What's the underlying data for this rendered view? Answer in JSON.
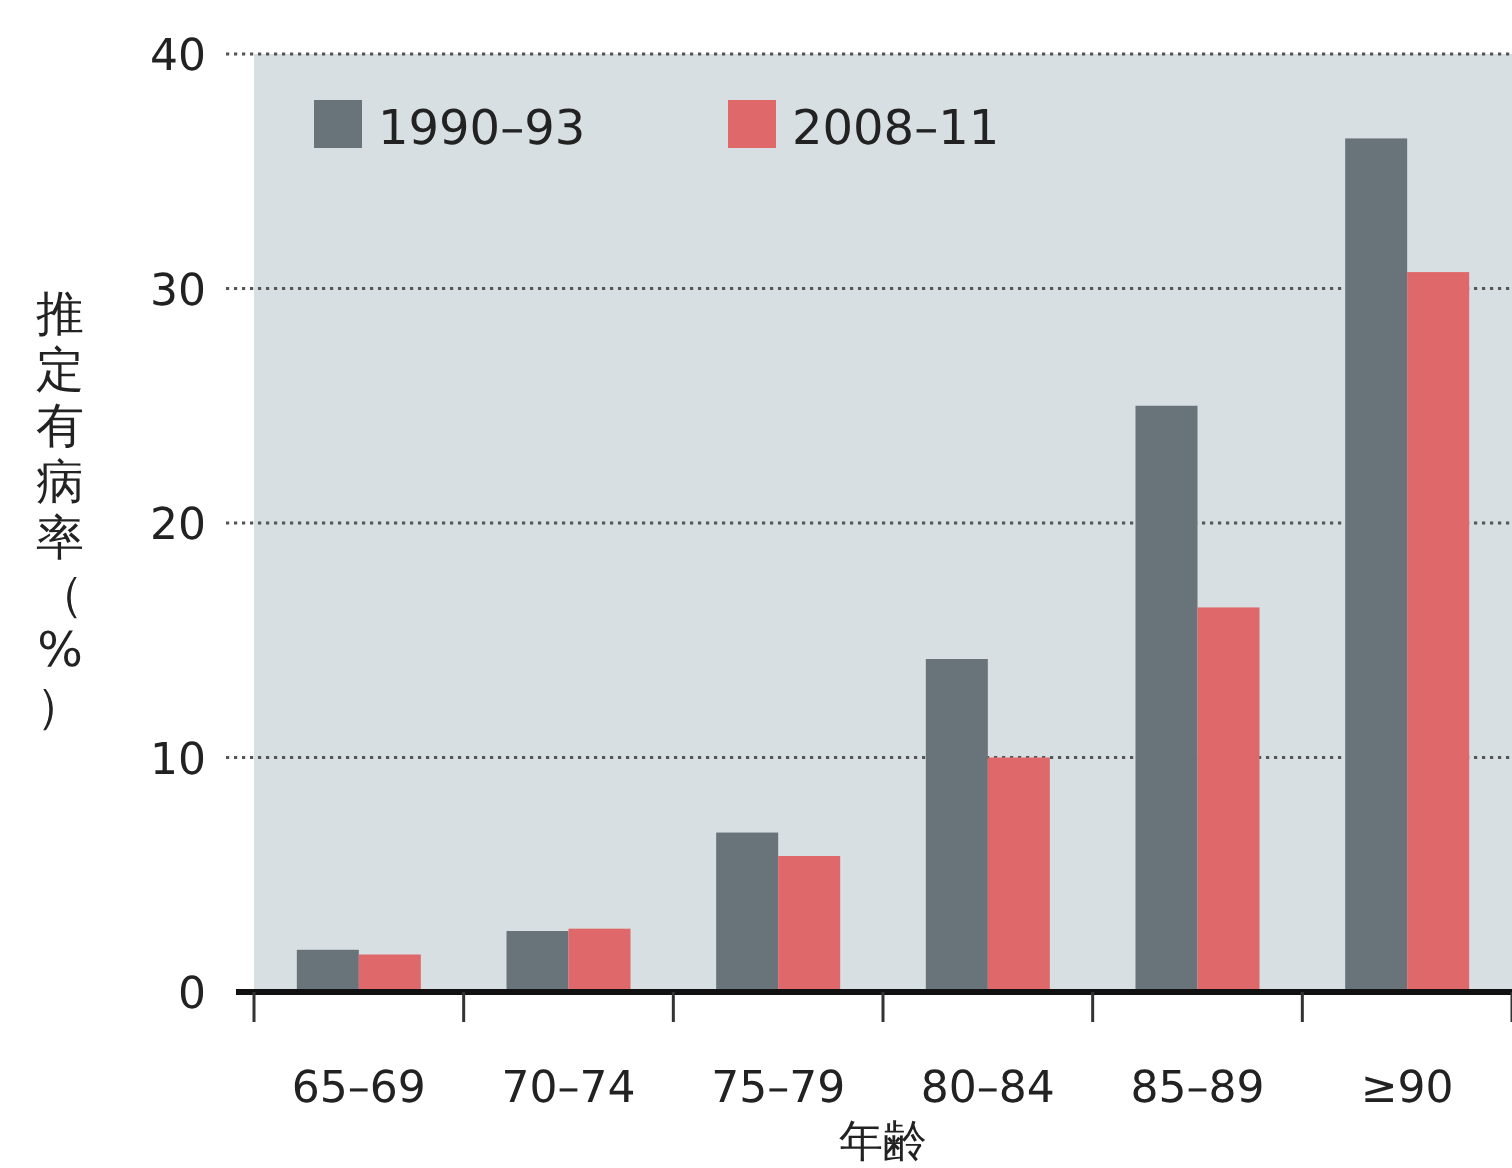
{
  "chart_data": {
    "type": "bar",
    "xlabel": "年齢",
    "ylabel": "推定有病率（%）",
    "categories": [
      "65–69",
      "70–74",
      "75–79",
      "80–84",
      "85–89",
      "≥90"
    ],
    "series": [
      {
        "name": "1990–93",
        "color": "#69737a",
        "values": [
          1.8,
          2.6,
          6.8,
          14.2,
          25.0,
          36.4
        ]
      },
      {
        "name": "2008–11",
        "color": "#df686a",
        "values": [
          1.6,
          2.7,
          5.8,
          10.0,
          16.4,
          30.7
        ]
      }
    ],
    "ylim": [
      0,
      40
    ],
    "yticks": [
      0,
      10,
      20,
      30,
      40
    ],
    "grid": "y",
    "legend": "top left"
  }
}
